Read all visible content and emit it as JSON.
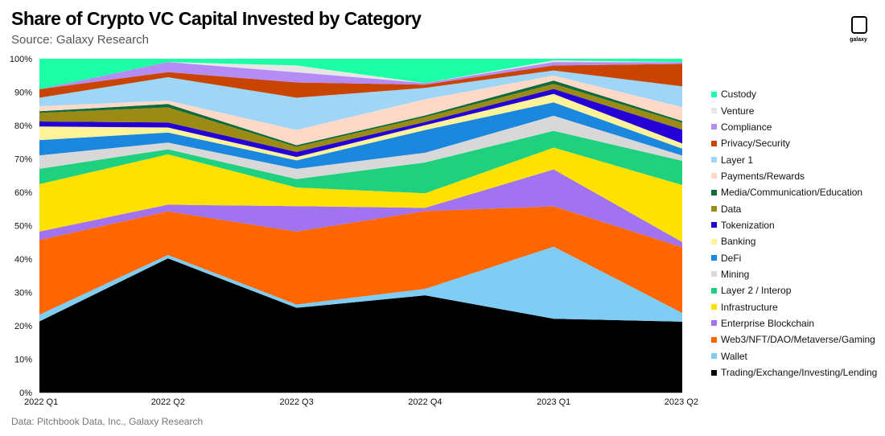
{
  "header": {
    "title": "Share of Crypto VC Capital Invested by Category",
    "subtitle": "Source: Galaxy Research",
    "footer": "Data: Pitchbook Data, Inc., Galaxy Research",
    "logo_text": "galaxy"
  },
  "chart_data": {
    "type": "area",
    "stacked": true,
    "percent": true,
    "title": "Share of Crypto VC Capital Invested by Category",
    "x": [
      "2022 Q1",
      "2022 Q2",
      "2022 Q3",
      "2022 Q4",
      "2023 Q1",
      "2023 Q2"
    ],
    "ylim": [
      0,
      100
    ],
    "yticks": [
      "0%",
      "10%",
      "20%",
      "30%",
      "40%",
      "50%",
      "60%",
      "70%",
      "80%",
      "90%",
      "100%"
    ],
    "grid": false,
    "legend_position": "right",
    "series": [
      {
        "name": "Trading/Exchange/Investing/Lending",
        "color": "#000000",
        "values": [
          21,
          40,
          25,
          30,
          22,
          20.5
        ]
      },
      {
        "name": "Wallet",
        "color": "#7fcdf5",
        "values": [
          2,
          1,
          1,
          2,
          21.5,
          2.5
        ]
      },
      {
        "name": "Web3/NFT/DAO/Metaverse/Gaming",
        "color": "#ff6600",
        "values": [
          22,
          13,
          21.5,
          24,
          12,
          19
        ]
      },
      {
        "name": "Enterprise Blockchain",
        "color": "#a173f0",
        "values": [
          2.5,
          2,
          7.5,
          1,
          11,
          1.5
        ]
      },
      {
        "name": "Infrastructure",
        "color": "#ffe100",
        "values": [
          14,
          15,
          5.5,
          4.5,
          6.5,
          16.5
        ]
      },
      {
        "name": "Layer 2 / Interop",
        "color": "#1fd17f",
        "values": [
          4.5,
          1.5,
          2.5,
          9.5,
          5,
          7
        ]
      },
      {
        "name": "Mining",
        "color": "#d8d8d8",
        "values": [
          4,
          2,
          3,
          3,
          4.5,
          1.5
        ]
      },
      {
        "name": "DeFi",
        "color": "#1b87de",
        "values": [
          4.5,
          3,
          2.5,
          7,
          4,
          2
        ]
      },
      {
        "name": "Banking",
        "color": "#fff39a",
        "values": [
          4,
          1.5,
          1,
          1.5,
          2.5,
          1.5
        ]
      },
      {
        "name": "Tokenization",
        "color": "#2400d6",
        "values": [
          1.5,
          1.5,
          1.5,
          1,
          1.5,
          4
        ]
      },
      {
        "name": "Data",
        "color": "#9b8b14",
        "values": [
          2.5,
          4.5,
          1.5,
          1.5,
          1.5,
          2
        ]
      },
      {
        "name": "Media/Communication/Education",
        "color": "#0d6b3c",
        "values": [
          0.5,
          1,
          0.5,
          0.5,
          1,
          0.5
        ]
      },
      {
        "name": "Payments/Rewards",
        "color": "#ffd9c8",
        "values": [
          1.5,
          1,
          4.5,
          5,
          1.5,
          4
        ]
      },
      {
        "name": "Layer 1",
        "color": "#9fd6f8",
        "values": [
          2.5,
          7,
          9.5,
          3.5,
          1.5,
          6
        ]
      },
      {
        "name": "Privacy/Security",
        "color": "#c84400",
        "values": [
          2.5,
          1.5,
          4.5,
          1,
          1.5,
          6.5
        ]
      },
      {
        "name": "Compliance",
        "color": "#b58cf3",
        "values": [
          0,
          3,
          3,
          0.5,
          1,
          0.5
        ]
      },
      {
        "name": "Venture",
        "color": "#e6e6e6",
        "values": [
          0,
          0,
          2,
          0,
          0.5,
          0
        ]
      },
      {
        "name": "Custody",
        "color": "#1dffa6",
        "values": [
          9,
          1,
          2,
          7.5,
          0.5,
          1
        ]
      }
    ]
  }
}
